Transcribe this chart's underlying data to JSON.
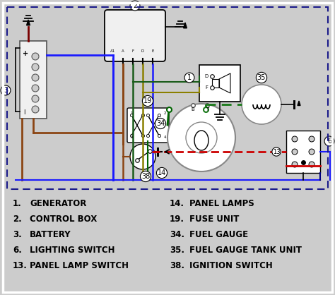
{
  "bg_color": "#cccccc",
  "wire_colors": {
    "blue": "#1a1aff",
    "brown": "#8B4513",
    "green": "#006400",
    "red": "#cc0000",
    "black": "#000000",
    "dark_green": "#1a5c1a",
    "yellow_green": "#8B8000",
    "dashed_green": "#1a7a1a",
    "dark_blue": "#000080",
    "maroon": "#7a0000"
  },
  "legend_items_left": [
    [
      "1.",
      "GENERATOR"
    ],
    [
      "2.",
      "CONTROL BOX"
    ],
    [
      "3.",
      "BATTERY"
    ],
    [
      "6.",
      "LIGHTING SWITCH"
    ],
    [
      "13.",
      "PANEL LAMP SWITCH"
    ]
  ],
  "legend_items_right": [
    [
      "14.",
      "PANEL LAMPS"
    ],
    [
      "19.",
      "FUSE UNIT"
    ],
    [
      "34.",
      "FUEL GAUGE"
    ],
    [
      "35.",
      "FUEL GAUGE TANK UNIT"
    ],
    [
      "38.",
      "IGNITION SWITCH"
    ]
  ]
}
